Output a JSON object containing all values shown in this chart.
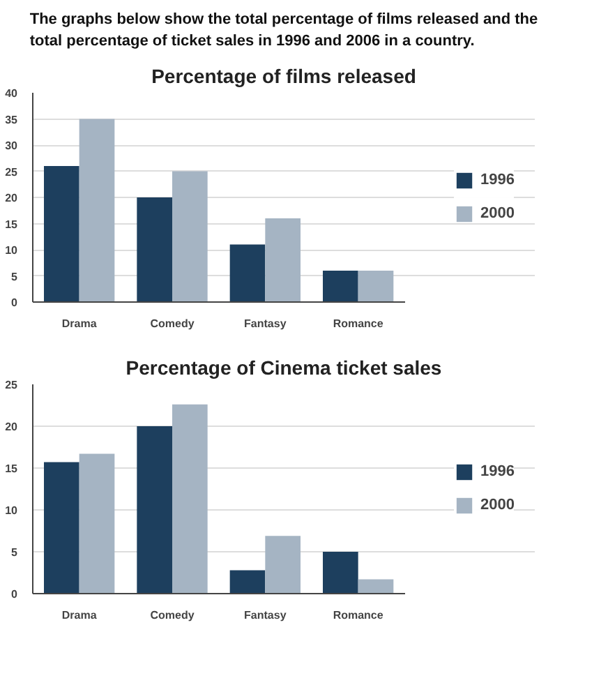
{
  "chart_data": [
    {
      "type": "bar",
      "title": "Percentage of films released",
      "annotations": [
        "The graphs below show the total percentage of films released and the total percentage of ticket sales in 1996 and 2006 in a country."
      ],
      "categories": [
        "Drama",
        "Comedy",
        "Fantasy",
        "Romance"
      ],
      "series": [
        {
          "name": "1996",
          "color": "#1d3f5e",
          "values": [
            26,
            20,
            11,
            6
          ]
        },
        {
          "name": "2000",
          "color": "#a5b4c3",
          "values": [
            35,
            25,
            16,
            6
          ]
        }
      ],
      "ylim": [
        0,
        40
      ],
      "yticks": [
        0,
        5,
        10,
        15,
        20,
        25,
        30,
        35,
        40
      ],
      "grid": "y",
      "legend": "right"
    },
    {
      "type": "bar",
      "title": "Percentage of Cinema ticket sales",
      "categories": [
        "Drama",
        "Comedy",
        "Fantasy",
        "Romance"
      ],
      "series": [
        {
          "name": "1996",
          "color": "#1d3f5e",
          "values": [
            15.7,
            20,
            2.8,
            5
          ]
        },
        {
          "name": "2000",
          "color": "#a5b4c3",
          "values": [
            16.7,
            22.6,
            6.9,
            1.7
          ]
        }
      ],
      "ylim": [
        0,
        25
      ],
      "yticks": [
        0,
        5,
        10,
        15,
        20,
        25
      ],
      "grid": "y",
      "legend": "right"
    }
  ]
}
